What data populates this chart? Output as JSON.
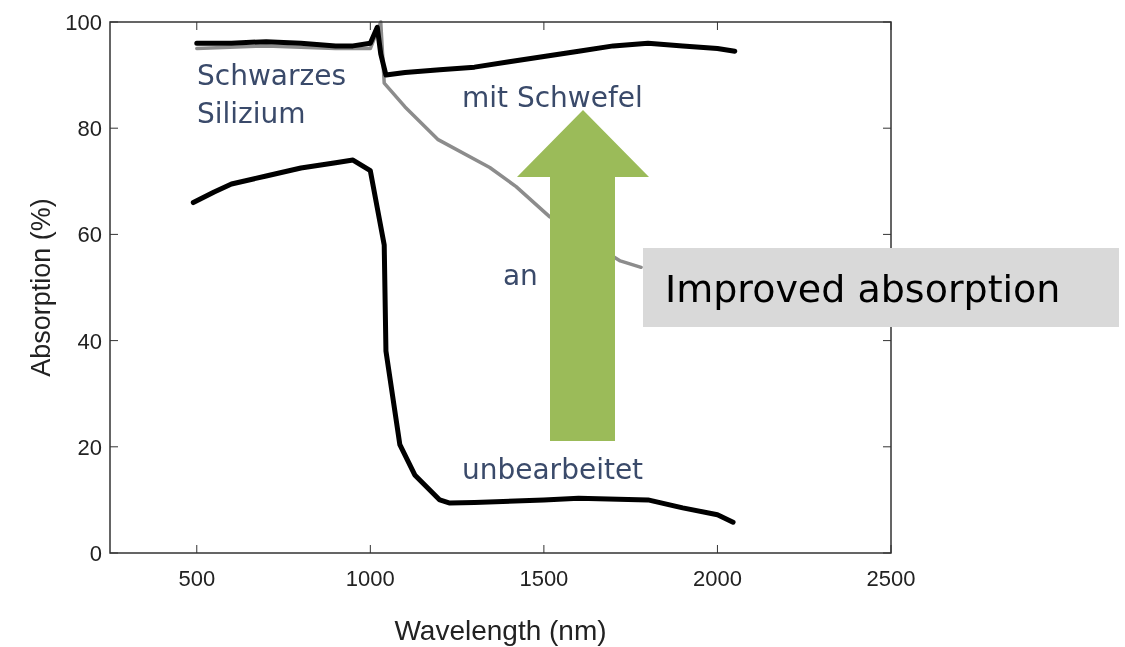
{
  "chart_data": {
    "type": "line",
    "xlabel": "Wavelength (nm)",
    "ylabel": "Absorption (%)",
    "xlim": [
      250,
      2500
    ],
    "ylim": [
      0,
      100
    ],
    "xticks": [
      500,
      1000,
      1500,
      2000,
      2500
    ],
    "yticks": [
      0,
      20,
      40,
      60,
      80,
      100
    ],
    "grid": false,
    "series": [
      {
        "name": "an",
        "color": "#8c8c8c",
        "x": [
          500,
          700,
          900,
          1000,
          1030,
          1040,
          1100,
          1194,
          1344,
          1420,
          1517,
          1720,
          1780
        ],
        "values": [
          95,
          95.5,
          95,
          95,
          100,
          88.5,
          84,
          77.9,
          72.6,
          69,
          63.3,
          55,
          53.8
        ]
      },
      {
        "name": "mit Schwefel",
        "color": "#000000",
        "x": [
          500,
          600,
          700,
          800,
          900,
          950,
          1000,
          1020,
          1030,
          1045,
          1100,
          1200,
          1300,
          1400,
          1500,
          1600,
          1700,
          1800,
          1900,
          2000,
          2050
        ],
        "values": [
          96,
          96,
          96.3,
          96,
          95.5,
          95.5,
          96,
          99,
          94,
          90,
          90.5,
          91,
          91.5,
          92.5,
          93.5,
          94.5,
          95.5,
          96,
          95.5,
          95,
          94.5
        ]
      },
      {
        "name": "unbearbeitet",
        "color": "#000000",
        "x": [
          490,
          550,
          600,
          700,
          800,
          900,
          950,
          1000,
          1020,
          1040,
          1045,
          1085,
          1128,
          1200,
          1229,
          1300,
          1500,
          1600,
          1800,
          1900,
          2000,
          2045
        ],
        "values": [
          66,
          68,
          69.5,
          71,
          72.5,
          73.5,
          74,
          72,
          65,
          58,
          38,
          20.4,
          14.7,
          10,
          9.4,
          9.5,
          10,
          10.3,
          10,
          8.5,
          7.2,
          5.8
        ]
      }
    ],
    "annotations": [
      "Schwarzes Silizium",
      "Improved absorption"
    ]
  }
}
